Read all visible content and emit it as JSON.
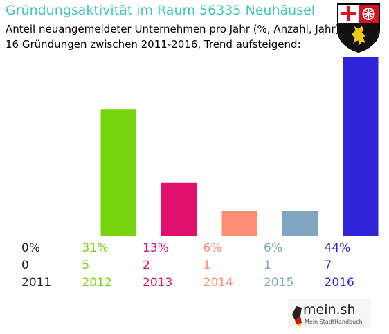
{
  "title": "Gründungsaktivität im Raum 56335 Neuhäusel",
  "subtitle1": "Anteil neuangemeldeter Unternehmen pro Jahr (%, Anzahl, Jahr)",
  "subtitle2": "16 Gründungen zwischen 2011-2016, Trend aufsteigend:",
  "logo": {
    "text": "mein.sh",
    "sub": "Mein StadtHandbuch"
  },
  "chart_data": {
    "type": "bar",
    "categories": [
      "2011",
      "2012",
      "2013",
      "2014",
      "2015",
      "2016"
    ],
    "percents": [
      "0%",
      "31%",
      "13%",
      "6%",
      "6%",
      "44%"
    ],
    "counts": [
      "0",
      "5",
      "2",
      "1",
      "1",
      "7"
    ],
    "values": [
      0,
      31,
      13,
      6,
      6,
      44
    ],
    "colors": [
      "#1a1a4a",
      "#76d40c",
      "#e0106e",
      "#fc8c72",
      "#7fa6c0",
      "#2e23d8"
    ],
    "ylim": [
      0,
      44
    ]
  }
}
